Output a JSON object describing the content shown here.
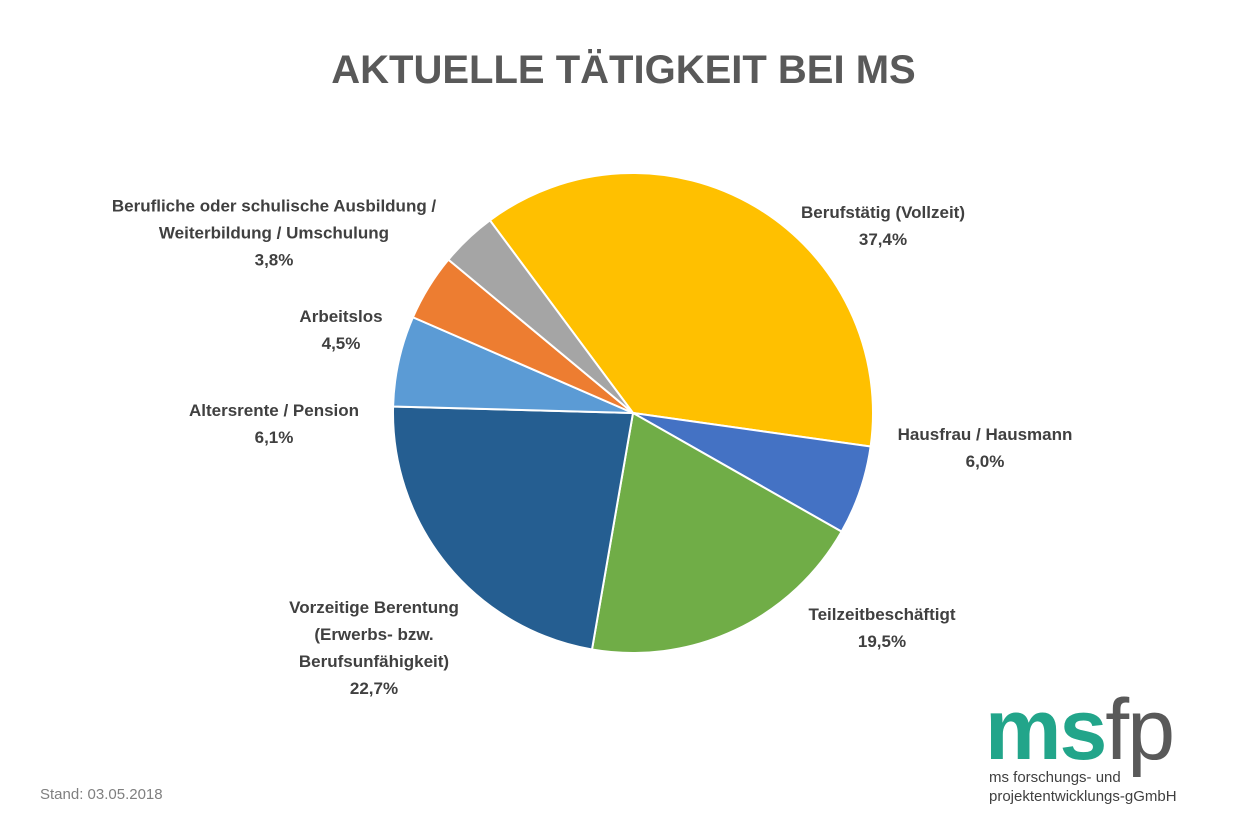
{
  "chart_data": {
    "type": "pie",
    "title": "AKTUELLE TÄTIGKEIT BEI MS",
    "slices": [
      {
        "label": "Berufstätig (Vollzeit)",
        "value": 37.4,
        "value_label": "37,4%",
        "color": "#FFC000"
      },
      {
        "label": "Hausfrau / Hausmann",
        "value": 6.0,
        "value_label": "6,0%",
        "color": "#4472C4"
      },
      {
        "label": "Teilzeitbeschäftigt",
        "value": 19.5,
        "value_label": "19,5%",
        "color": "#70AD47"
      },
      {
        "label": "Vorzeitige Berentung (Erwerbs- bzw. Berufsunfähigkeit)",
        "value": 22.7,
        "value_label": "22,7%",
        "color": "#255E91"
      },
      {
        "label": "Altersrente / Pension",
        "value": 6.1,
        "value_label": "6,1%",
        "color": "#5B9BD5"
      },
      {
        "label": "Arbeitslos",
        "value": 4.5,
        "value_label": "4,5%",
        "color": "#ED7D31"
      },
      {
        "label": "Berufliche oder schulische Ausbildung / Weiterbildung / Umschulung",
        "value": 3.8,
        "value_label": "3,8%",
        "color": "#A5A5A5"
      }
    ],
    "label_lines": [
      [
        "Berufstätig (Vollzeit)"
      ],
      [
        "Hausfrau / Hausmann"
      ],
      [
        "Teilzeitbeschäftigt"
      ],
      [
        "Vorzeitige Berentung",
        "(Erwerbs- bzw.",
        "Berufsunfähigkeit)"
      ],
      [
        "Altersrente / Pension"
      ],
      [
        "Arbeitslos"
      ],
      [
        "Berufliche oder schulische Ausbildung /",
        "Weiterbildung / Umschulung"
      ]
    ]
  },
  "footer": {
    "stand": "Stand: 03.05.2018"
  },
  "logo": {
    "ms": "ms",
    "fp": "fp",
    "line1": "ms forschungs- und",
    "line2": "projektentwicklungs-gGmbH"
  }
}
